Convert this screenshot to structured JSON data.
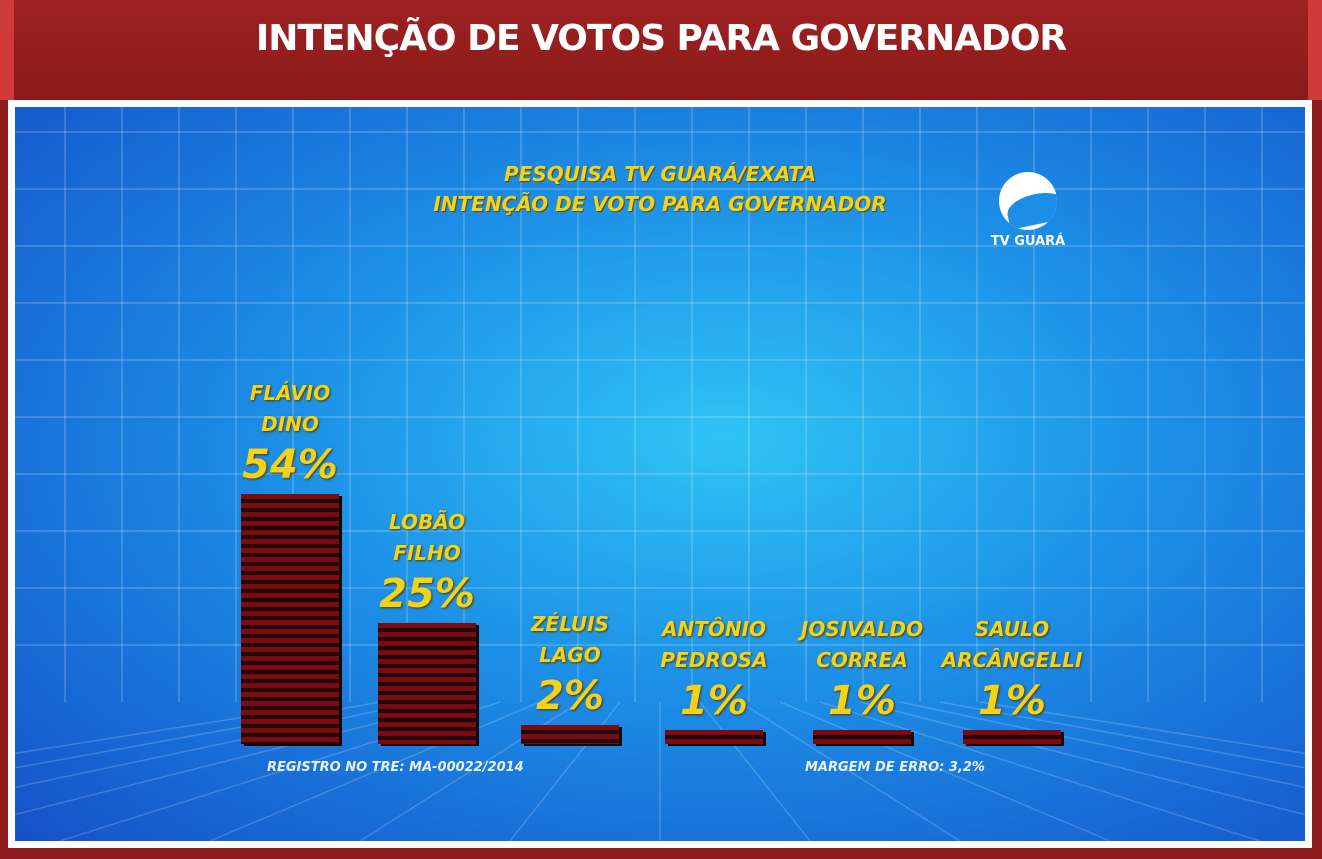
{
  "header": {
    "title": "INTENÇÃO DE VOTOS PARA GOVERNADOR"
  },
  "logo": {
    "text": "TV GUARÁ"
  },
  "footer": {
    "registro": "REGISTRO NO TRE: MA-00022/2014",
    "margem": "MARGEM DE ERRO: 3,2%"
  },
  "chart_data": {
    "type": "bar",
    "title": "PESQUISA TV GUARÁ/EXATA",
    "subtitle": "INTENÇÃO DE VOTO PARA GOVERNADOR",
    "categories": [
      [
        "FLÁVIO",
        "DINO"
      ],
      [
        "LOBÃO",
        "FILHO"
      ],
      [
        "ZÉLUIS",
        "LAGO"
      ],
      [
        "ANTÔNIO",
        "PEDROSA"
      ],
      [
        "JOSIVALDO",
        "CORREA"
      ],
      [
        "SAULO",
        "ARCÂNGELLI"
      ]
    ],
    "values": [
      54,
      25,
      2,
      1,
      1,
      1
    ],
    "labels": [
      "54%",
      "25%",
      "2%",
      "1%",
      "1%",
      "1%"
    ],
    "ylim": [
      0,
      60
    ],
    "colors": {
      "bar": "#7a0c10",
      "label": "#f2d21a"
    }
  }
}
